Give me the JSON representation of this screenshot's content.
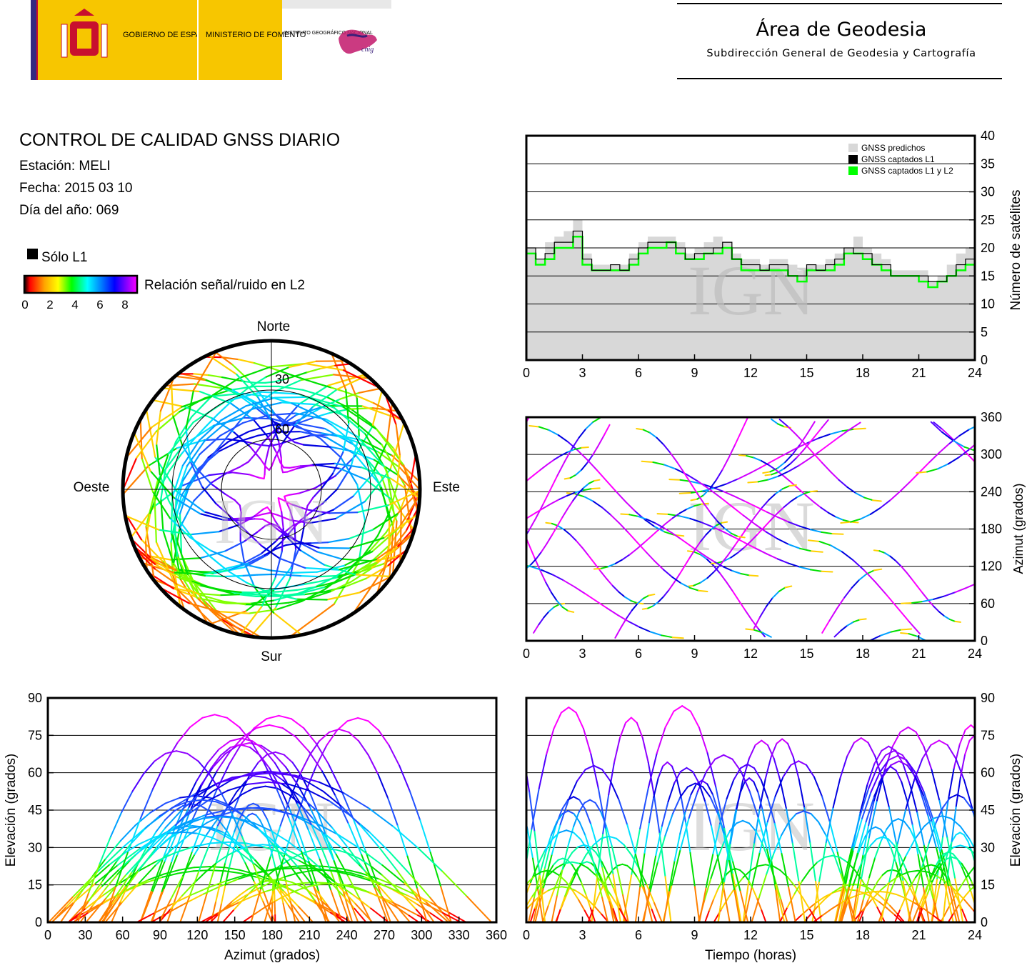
{
  "header": {
    "logo_left_1": "GOBIERNO DE ESPAÑA",
    "logo_left_2": "MINISTERIO DE FOMENTO",
    "logo_left_3": "INSTITUTO GEOGRÁFICO NACIONAL",
    "logo_brand": "cnig",
    "title": "Área de Geodesia",
    "subtitle": "Subdirección General de Geodesia y Cartografía"
  },
  "report": {
    "title": "CONTROL DE CALIDAD GNSS DIARIO",
    "station": "Estación: MELI",
    "date": "Fecha: 2015 03 10",
    "doy": "Día del año: 069"
  },
  "legend": {
    "solo_l1": "Sólo L1",
    "snr_label": "Relación señal/ruido en L2",
    "scale_ticks": [
      "0",
      "2",
      "4",
      "6",
      "8"
    ],
    "colors": {
      "solo_l1": "#000000",
      "gradient": [
        "#000000",
        "#ff0000",
        "#ffa500",
        "#ffff00",
        "#00ff00",
        "#00ffff",
        "#0080ff",
        "#0000ff",
        "#8000ff",
        "#ff00ff"
      ]
    }
  },
  "watermark": "IGN",
  "chart_data": [
    {
      "id": "satellites",
      "type": "area",
      "ylabel": "Número de satélites",
      "xlim": [
        0,
        24
      ],
      "ylim": [
        0,
        40
      ],
      "xticks": [
        "0",
        "3",
        "6",
        "9",
        "12",
        "15",
        "18",
        "21",
        "24"
      ],
      "yticks": [
        "0",
        "5",
        "10",
        "15",
        "20",
        "25",
        "30",
        "35",
        "40"
      ],
      "grid": true,
      "legend_position": "top-right",
      "series": [
        {
          "name": "GNSS predichos",
          "color": "#d8d8d8",
          "x": [
            0,
            0.5,
            1,
            1.5,
            2,
            2.5,
            3,
            3.5,
            4,
            4.5,
            5,
            5.5,
            6,
            6.5,
            7,
            7.5,
            8,
            8.5,
            9,
            9.5,
            10,
            10.5,
            11,
            11.5,
            12,
            12.5,
            13,
            13.5,
            14,
            14.5,
            15,
            15.5,
            16,
            16.5,
            17,
            17.5,
            18,
            18.5,
            19,
            19.5,
            20,
            20.5,
            21,
            21.5,
            22,
            22.5,
            23,
            23.5,
            24
          ],
          "values": [
            20,
            18,
            21,
            22,
            23,
            25,
            19,
            17,
            17,
            17,
            17,
            19,
            21,
            22,
            22,
            22,
            21,
            19,
            20,
            21,
            22,
            21,
            19,
            18,
            18,
            17,
            18,
            18,
            17,
            16,
            17,
            17,
            18,
            19,
            20,
            22,
            20,
            19,
            18,
            16,
            16,
            16,
            16,
            14,
            15,
            17,
            19,
            20,
            18
          ]
        },
        {
          "name": "GNSS captados L1",
          "color": "#000000",
          "x": [
            0,
            0.5,
            1,
            1.5,
            2,
            2.5,
            3,
            3.5,
            4,
            4.5,
            5,
            5.5,
            6,
            6.5,
            7,
            7.5,
            8,
            8.5,
            9,
            9.5,
            10,
            10.5,
            11,
            11.5,
            12,
            12.5,
            13,
            13.5,
            14,
            14.5,
            15,
            15.5,
            16,
            16.5,
            17,
            17.5,
            18,
            18.5,
            19,
            19.5,
            20,
            20.5,
            21,
            21.5,
            22,
            22.5,
            23,
            23.5,
            24
          ],
          "values": [
            20,
            18,
            19,
            21,
            21,
            23,
            18,
            16,
            16,
            17,
            16,
            18,
            20,
            21,
            21,
            21,
            20,
            18,
            19,
            19,
            20,
            21,
            18,
            17,
            17,
            16,
            17,
            17,
            15,
            15,
            17,
            16,
            17,
            18,
            20,
            19,
            19,
            17,
            17,
            15,
            15,
            15,
            15,
            14,
            14,
            15,
            17,
            18,
            16
          ]
        },
        {
          "name": "GNSS captados L1 y L2",
          "color": "#00ff00",
          "x": [
            0,
            0.5,
            1,
            1.5,
            2,
            2.5,
            3,
            3.5,
            4,
            4.5,
            5,
            5.5,
            6,
            6.5,
            7,
            7.5,
            8,
            8.5,
            9,
            9.5,
            10,
            10.5,
            11,
            11.5,
            12,
            12.5,
            13,
            13.5,
            14,
            14.5,
            15,
            15.5,
            16,
            16.5,
            17,
            17.5,
            18,
            18.5,
            19,
            19.5,
            20,
            20.5,
            21,
            21.5,
            22,
            22.5,
            23,
            23.5,
            24
          ],
          "values": [
            19,
            17,
            18,
            20,
            20,
            22,
            17,
            16,
            16,
            16,
            16,
            17,
            19,
            20,
            20,
            21,
            19,
            18,
            18,
            19,
            19,
            20,
            18,
            16,
            16,
            16,
            16,
            16,
            15,
            14,
            16,
            16,
            16,
            17,
            19,
            19,
            18,
            17,
            16,
            15,
            15,
            15,
            14,
            13,
            14,
            15,
            16,
            17,
            16
          ]
        }
      ]
    },
    {
      "id": "skyplot",
      "type": "scatter",
      "projection": "polar",
      "direction_labels": {
        "north": "Norte",
        "south": "Sur",
        "west": "Oeste",
        "east": "Este"
      },
      "ring_labels": [
        "30",
        "60"
      ],
      "color_encoding": "Relación señal/ruido en L2"
    },
    {
      "id": "azimuth_time",
      "type": "scatter",
      "ylabel": "Azimut (grados)",
      "xlim": [
        0,
        24
      ],
      "ylim": [
        0,
        360
      ],
      "xticks": [
        "0",
        "3",
        "6",
        "9",
        "12",
        "15",
        "18",
        "21",
        "24"
      ],
      "yticks": [
        "0",
        "60",
        "120",
        "180",
        "240",
        "300",
        "360"
      ],
      "grid": true
    },
    {
      "id": "elevation_azimuth",
      "type": "scatter",
      "xlabel": "Azimut (grados)",
      "ylabel": "Elevación (grados)",
      "xlim": [
        0,
        360
      ],
      "ylim": [
        0,
        90
      ],
      "xticks": [
        "0",
        "30",
        "60",
        "90",
        "120",
        "150",
        "180",
        "210",
        "240",
        "270",
        "300",
        "330",
        "360"
      ],
      "yticks": [
        "0",
        "15",
        "30",
        "45",
        "60",
        "75",
        "90"
      ],
      "grid": true
    },
    {
      "id": "elevation_time",
      "type": "scatter",
      "xlabel": "Tiempo (horas)",
      "ylabel": "Elevación (grados)",
      "xlim": [
        0,
        24
      ],
      "ylim": [
        0,
        90
      ],
      "xticks": [
        "0",
        "3",
        "6",
        "9",
        "12",
        "15",
        "18",
        "21",
        "24"
      ],
      "yticks": [
        "0",
        "15",
        "30",
        "45",
        "60",
        "75",
        "90"
      ],
      "grid": true
    }
  ]
}
